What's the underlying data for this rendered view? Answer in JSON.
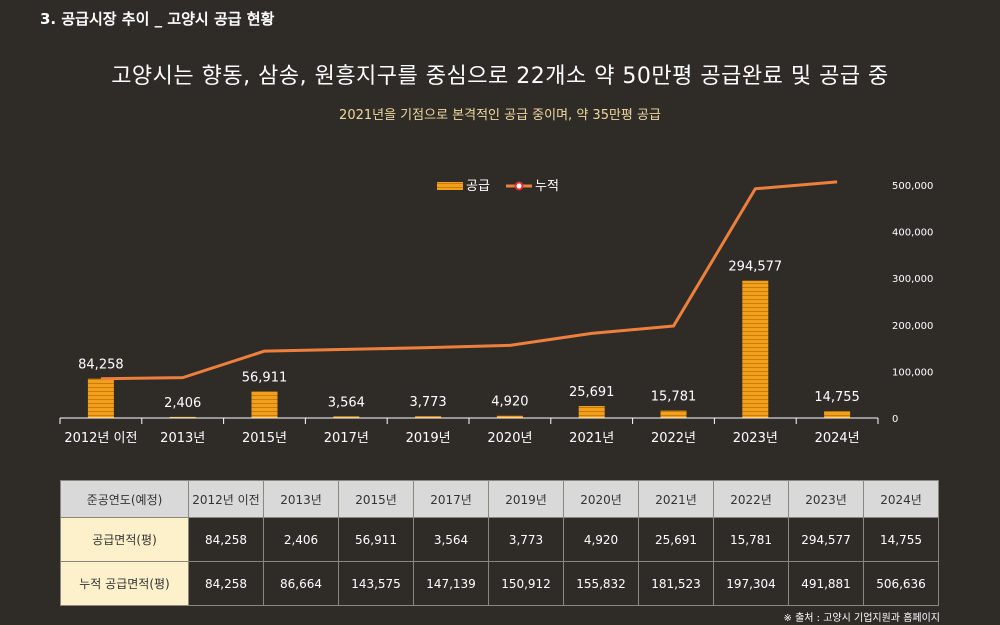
{
  "section_title": "3. 공급시장 추이 _ 고양시 공급 현황",
  "headline": "고양시는 향동, 삼송, 원흥지구를 중심으로 22개소 약 50만평 공급완료 및 공급 중",
  "subline": "2021년을 기점으로 본격적인 공급 중이며, 약 35만평 공급",
  "chart_data": {
    "type": "bar",
    "categories": [
      "2012년 이전",
      "2013년",
      "2015년",
      "2017년",
      "2019년",
      "2020년",
      "2021년",
      "2022년",
      "2023년",
      "2024년"
    ],
    "series": [
      {
        "name": "공급",
        "type": "bar",
        "values": [
          84258,
          2406,
          56911,
          3564,
          3773,
          4920,
          25691,
          15781,
          294577,
          14755
        ],
        "labels": [
          "84,258",
          "2,406",
          "56,911",
          "3,564",
          "3,773",
          "4,920",
          "25,691",
          "15,781",
          "294,577",
          "14,755"
        ]
      },
      {
        "name": "누적",
        "type": "line",
        "values": [
          84258,
          86664,
          143575,
          147139,
          150912,
          155832,
          181523,
          197304,
          491881,
          506636
        ]
      }
    ],
    "ylim": [
      0,
      500000
    ],
    "yticks": [
      "0",
      "100,000",
      "200,000",
      "300,000",
      "400,000",
      "500,000"
    ],
    "ytick_values": [
      0,
      100000,
      200000,
      300000,
      400000,
      500000
    ],
    "legend": "top-center",
    "colors": {
      "bar": "#f2a01c",
      "bar_stripe": "#c97b08",
      "line": "#ee7f3c",
      "axis": "#ffffff"
    }
  },
  "table": {
    "headers": [
      "준공연도(예정)",
      "2012년 이전",
      "2013년",
      "2015년",
      "2017년",
      "2019년",
      "2020년",
      "2021년",
      "2022년",
      "2023년",
      "2024년"
    ],
    "rows": [
      {
        "label": "공급면적(평)",
        "values": [
          "84,258",
          "2,406",
          "56,911",
          "3,564",
          "3,773",
          "4,920",
          "25,691",
          "15,781",
          "294,577",
          "14,755"
        ]
      },
      {
        "label": "누적 공급면적(평)",
        "values": [
          "84,258",
          "86,664",
          "143,575",
          "147,139",
          "150,912",
          "155,832",
          "181,523",
          "197,304",
          "491,881",
          "506,636"
        ]
      }
    ]
  },
  "source": "※ 출처 : 고양시 기업지원과 홈페이지"
}
